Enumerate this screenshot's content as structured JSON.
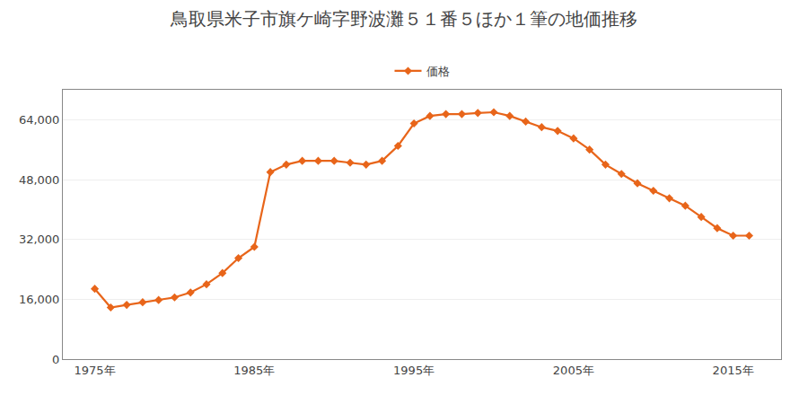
{
  "chart_data": {
    "type": "line",
    "title": "鳥取県米子市旗ケ崎字野波灘５１番５ほか１筆の地価推移",
    "x": [
      1975,
      1976,
      1977,
      1978,
      1979,
      1980,
      1981,
      1982,
      1983,
      1984,
      1985,
      1986,
      1987,
      1988,
      1989,
      1990,
      1991,
      1992,
      1993,
      1994,
      1995,
      1996,
      1997,
      1998,
      1999,
      2000,
      2001,
      2002,
      2003,
      2004,
      2005,
      2006,
      2007,
      2008,
      2009,
      2010,
      2011,
      2012,
      2013,
      2014,
      2015,
      2016
    ],
    "series": [
      {
        "name": "価格",
        "color": "#E8651A",
        "marker": "diamond",
        "line_style": "solid",
        "values": [
          18800,
          13800,
          14500,
          15200,
          15800,
          16500,
          17800,
          20000,
          23000,
          27000,
          30000,
          50000,
          52000,
          53000,
          53000,
          53000,
          52500,
          52000,
          53000,
          57000,
          63000,
          65000,
          65500,
          65500,
          65800,
          66000,
          65000,
          63500,
          62000,
          61000,
          59000,
          56000,
          52000,
          49500,
          47000,
          45000,
          43000,
          41000,
          38000,
          35000,
          33000,
          33000
        ]
      }
    ],
    "xlim": [
      1973,
      2018
    ],
    "xticks": [
      {
        "value": 1975,
        "label": "1975年"
      },
      {
        "value": 1985,
        "label": "1985年"
      },
      {
        "value": 1995,
        "label": "1995年"
      },
      {
        "value": 2005,
        "label": "2005年"
      },
      {
        "value": 2015,
        "label": "2015年"
      }
    ],
    "ylim": [
      0,
      72000
    ],
    "yticks": [
      0,
      {
        "value": 16000,
        "label": "16,000"
      },
      {
        "value": 32000,
        "label": "32,000"
      },
      {
        "value": 48000,
        "label": "48,000"
      },
      {
        "value": 64000,
        "label": "64,000"
      }
    ],
    "grid": "y",
    "legend": "top"
  }
}
